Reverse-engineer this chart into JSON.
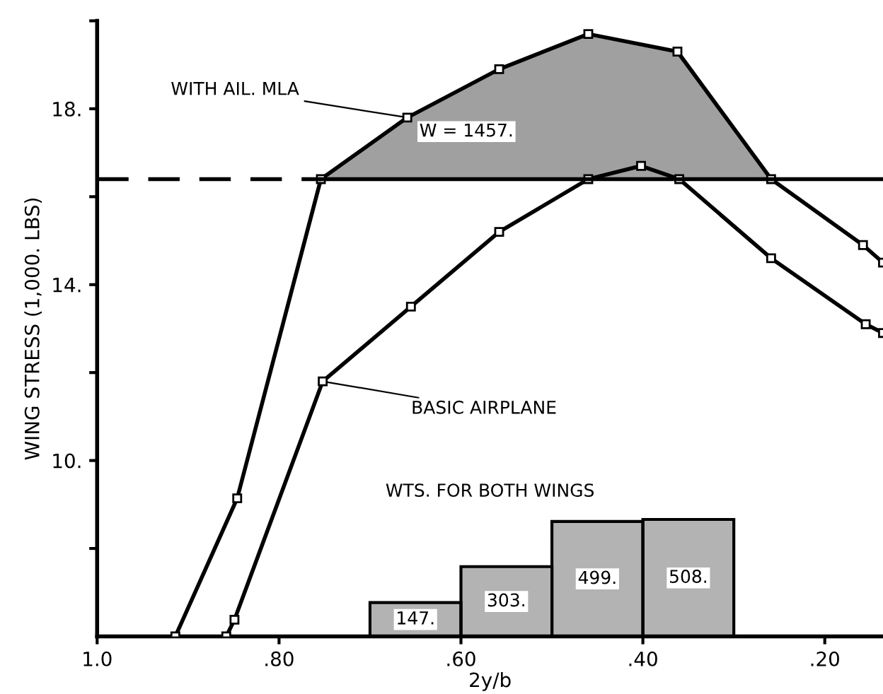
{
  "chart_data": {
    "type": "line",
    "xlabel": "2y/b",
    "ylabel": "WING STRESS (1,000. LBS)",
    "xlim": [
      1.0,
      0.136
    ],
    "ylim": [
      6,
      20
    ],
    "xticks": [
      {
        "value": 1.0,
        "label": "1.0"
      },
      {
        "value": 0.8,
        "label": ".80"
      },
      {
        "value": 0.6,
        "label": ".60"
      },
      {
        "value": 0.4,
        "label": ".40"
      },
      {
        "value": 0.2,
        "label": ".20"
      }
    ],
    "yticks": [
      {
        "value": 8,
        "label": null
      },
      {
        "value": 10,
        "label": "10."
      },
      {
        "value": 12,
        "label": null
      },
      {
        "value": 14,
        "label": "14."
      },
      {
        "value": 16,
        "label": null
      },
      {
        "value": 18,
        "label": "18."
      },
      {
        "value": 20,
        "label": null
      }
    ],
    "series": [
      {
        "name": "WITH AIL. MLA",
        "color": "#000000",
        "marker": "square",
        "x": [
          0.914,
          0.846,
          0.754,
          0.659,
          0.558,
          0.46,
          0.362,
          0.259,
          0.158,
          0.136
        ],
        "values": [
          6.0,
          9.14,
          16.4,
          17.8,
          18.9,
          19.7,
          19.3,
          16.4,
          14.9,
          14.5
        ],
        "lower": [
          null,
          null,
          16.4,
          16.4,
          16.4,
          16.4,
          16.4,
          16.4,
          null,
          null
        ],
        "upper": [
          null,
          null,
          16.4,
          17.8,
          18.9,
          19.7,
          19.3,
          16.4,
          null,
          null
        ]
      },
      {
        "name": "BASIC AIRPLANE",
        "color": "#000000",
        "marker": "square",
        "x": [
          0.858,
          0.849,
          0.752,
          0.655,
          0.558,
          0.46,
          0.402,
          0.36,
          0.259,
          0.155,
          0.136
        ],
        "values": [
          6.0,
          6.38,
          11.8,
          13.5,
          15.2,
          16.4,
          16.7,
          16.4,
          14.6,
          13.1,
          12.9
        ]
      },
      {
        "color": "#000000",
        "marker": "none",
        "line_style": "dashed",
        "x": [
          1.0,
          0.754
        ],
        "values": [
          16.4,
          16.4
        ]
      },
      {
        "color": "#000000",
        "marker": "none",
        "line_style": "solid",
        "x": [
          0.754,
          0.136
        ],
        "values": [
          16.4,
          16.4
        ]
      },
      {
        "type": "bar",
        "axis": "y2",
        "color": "#b3b3b3",
        "x": [
          0.65,
          0.55,
          0.45,
          0.35
        ],
        "values": [
          147,
          303,
          499,
          508
        ],
        "value_labels": [
          "147.",
          "303.",
          "499.",
          "508."
        ]
      }
    ],
    "annotations": [
      "W = 1457.",
      "WTS. FOR BOTH WINGS"
    ],
    "grid": false
  }
}
